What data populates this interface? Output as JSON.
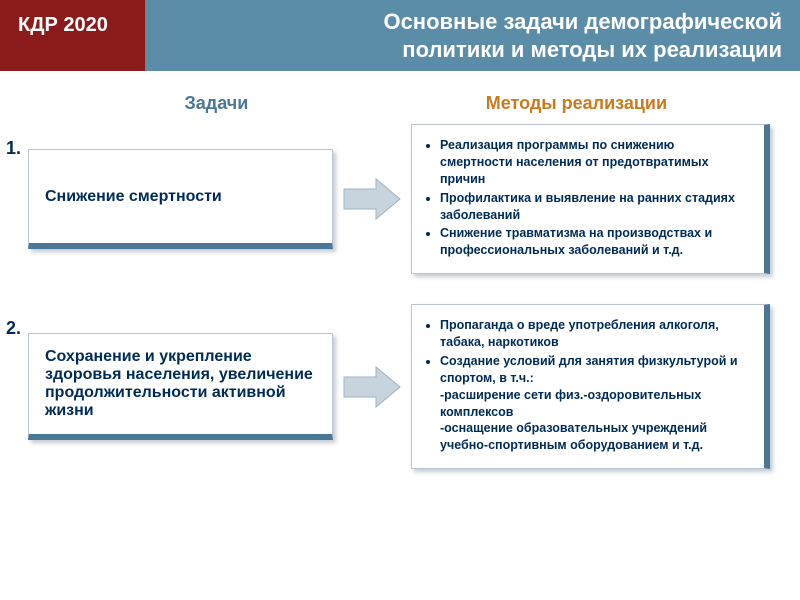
{
  "header": {
    "badge": "КДР 2020",
    "title_line1": "Основные задачи демографической",
    "title_line2": "политики и методы их реализации",
    "badge_bg": "#8b1a1a",
    "title_bg": "#5b8ca8"
  },
  "columns": {
    "left_label": "Задачи",
    "right_label": "Методы реализации",
    "left_color": "#4b7797",
    "right_color": "#c97a1f"
  },
  "arrow": {
    "fill": "#c8d4dd",
    "stroke": "#9fb3c2"
  },
  "rows": [
    {
      "num": "1.",
      "task": "Снижение смертности",
      "methods": [
        "Реализация программы по снижению смертности населения от предотвратимых причин",
        "Профилактика и выявление на ранних стадиях заболеваний",
        "Снижение травматизма на производствах и профессиональных заболеваний и т.д."
      ]
    },
    {
      "num": "2.",
      "task": "Сохранение и укрепление здоровья населения, увеличение продолжительности активной жизни",
      "methods": [
        "Пропаганда о вреде употребления алкоголя, табака, наркотиков",
        "Создание условий для занятия физкультурой и спортом, в т.ч.:\n -расширение сети физ.-оздоровительных комплексов\n-оснащение образовательных учреждений учебно-спортивным оборудованием и т.д."
      ]
    }
  ],
  "box": {
    "border_accent": "#4b7797",
    "text_color": "#002b55",
    "shadow": "rgba(90,110,130,0.35)"
  }
}
